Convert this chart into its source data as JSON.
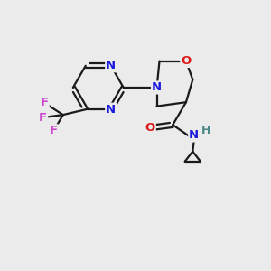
{
  "bg_color": "#ebebeb",
  "bond_color": "#1a1a1a",
  "bond_width": 1.6,
  "atom_colors": {
    "N": "#1a1add",
    "O": "#dd1a1a",
    "F": "#cc44cc",
    "H": "#4a8888"
  },
  "font_size": 9.5,
  "figsize": [
    3.0,
    3.0
  ],
  "dpi": 100
}
